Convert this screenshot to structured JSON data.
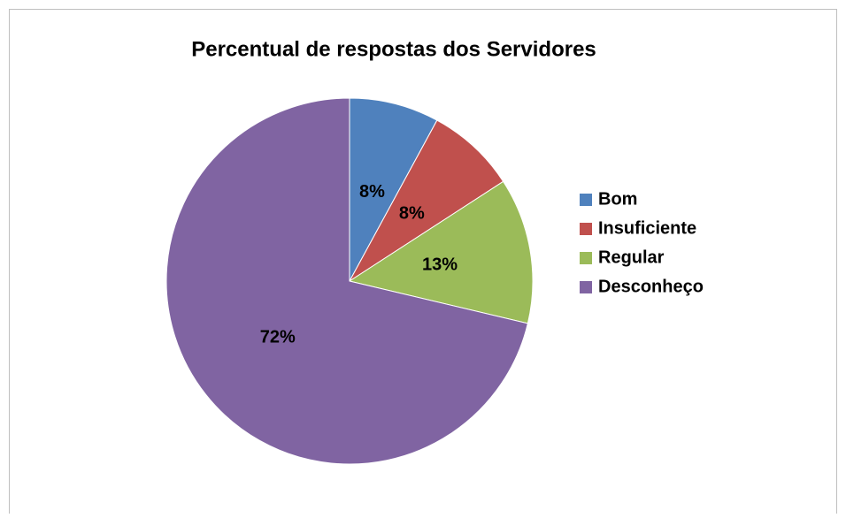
{
  "chart_data": {
    "type": "pie",
    "title": "Percentual de respostas dos Servidores",
    "categories": [
      "Bom",
      "Insuficiente",
      "Regular",
      "Desconheço"
    ],
    "values": [
      8,
      8,
      13,
      72
    ],
    "value_labels": [
      "8%",
      "8%",
      "13%",
      "72%"
    ],
    "colors": [
      "#4f81bd",
      "#c0504d",
      "#9bbb59",
      "#8064a2"
    ],
    "legend": "right"
  }
}
